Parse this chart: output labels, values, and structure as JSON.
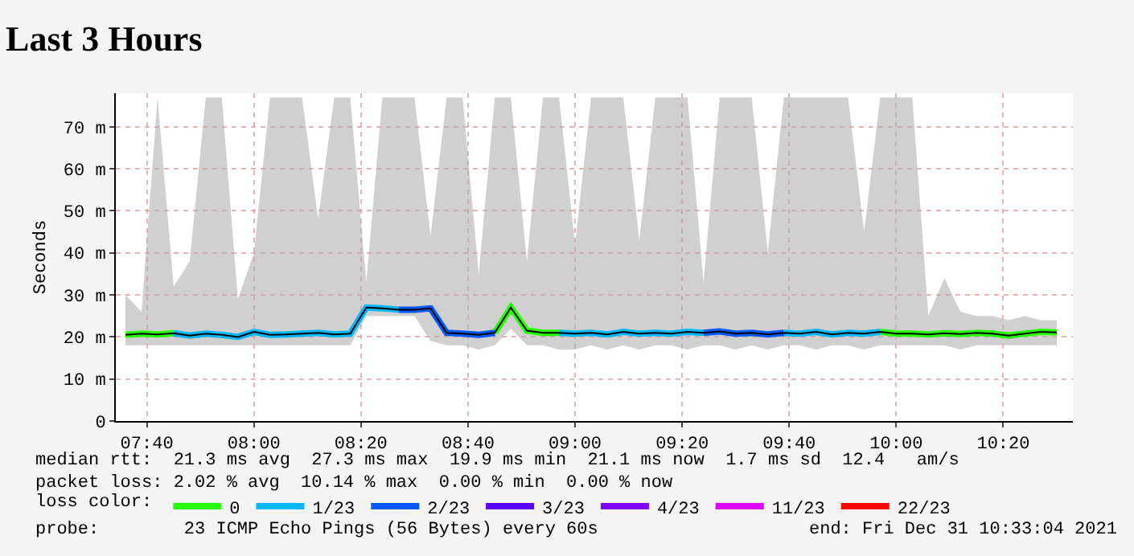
{
  "chart_data": {
    "type": "line",
    "title": "Last 3 Hours",
    "ylabel": "Seconds",
    "x": [
      7.6,
      7.65,
      7.7,
      7.75,
      7.8,
      7.85,
      7.9,
      7.95,
      8.0,
      8.05,
      8.1,
      8.15,
      8.2,
      8.25,
      8.3,
      8.35,
      8.4,
      8.45,
      8.5,
      8.55,
      8.6,
      8.65,
      8.7,
      8.75,
      8.8,
      8.85,
      8.9,
      8.95,
      9.0,
      9.05,
      9.1,
      9.15,
      9.2,
      9.25,
      9.3,
      9.35,
      9.4,
      9.45,
      9.5,
      9.55,
      9.6,
      9.65,
      9.7,
      9.75,
      9.8,
      9.85,
      9.9,
      9.95,
      10.0,
      10.05,
      10.1,
      10.15,
      10.2,
      10.25,
      10.3,
      10.35,
      10.4,
      10.45,
      10.5
    ],
    "xlim": [
      7.57,
      10.55
    ],
    "xticks": [
      {
        "value": 7.6667,
        "label": "07:40"
      },
      {
        "value": 8.0,
        "label": "08:00"
      },
      {
        "value": 8.3333,
        "label": "08:20"
      },
      {
        "value": 8.6667,
        "label": "08:40"
      },
      {
        "value": 9.0,
        "label": "09:00"
      },
      {
        "value": 9.3333,
        "label": "09:20"
      },
      {
        "value": 9.6667,
        "label": "09:40"
      },
      {
        "value": 10.0,
        "label": "10:00"
      },
      {
        "value": 10.3333,
        "label": "10:20"
      }
    ],
    "ylim": [
      0,
      78
    ],
    "yticks": [
      0,
      {
        "value": 10,
        "label": "10 m"
      },
      {
        "value": 20,
        "label": "20 m"
      },
      {
        "value": 30,
        "label": "30 m"
      },
      {
        "value": 40,
        "label": "40 m"
      },
      {
        "value": 50,
        "label": "50 m"
      },
      {
        "value": 60,
        "label": "60 m"
      },
      {
        "value": 70,
        "label": "70 m"
      }
    ],
    "grid": true,
    "legend": "bottom",
    "legend_title": "loss color:",
    "marker": "none",
    "line_style": "solid",
    "series": [
      {
        "color": "#000000",
        "values": [
          20.5,
          20.8,
          20.6,
          20.9,
          20.3,
          20.8,
          20.5,
          20.0,
          21.2,
          20.5,
          20.6,
          20.8,
          21.0,
          20.6,
          20.8,
          27.0,
          26.8,
          26.5,
          26.5,
          26.8,
          21.0,
          20.8,
          20.5,
          21.0,
          27.0,
          21.5,
          21.0,
          21.0,
          20.8,
          21.0,
          20.6,
          21.2,
          20.8,
          21.0,
          20.8,
          21.2,
          21.0,
          21.3,
          20.8,
          21.0,
          20.6,
          21.0,
          20.8,
          21.2,
          20.6,
          21.0,
          20.8,
          21.2,
          20.8,
          20.8,
          20.6,
          20.9,
          20.7,
          21.0,
          20.8,
          20.3,
          20.8,
          21.2,
          21.1
        ],
        "lower": [
          18,
          18,
          18,
          18,
          18,
          18,
          18,
          18,
          18,
          18,
          18,
          18,
          18,
          18,
          18,
          25,
          25,
          25,
          25,
          19,
          18,
          18,
          17,
          18,
          22,
          18,
          18,
          17,
          17,
          18,
          17,
          18,
          17,
          18,
          18,
          17,
          18,
          18,
          17,
          18,
          17,
          18,
          18,
          17,
          18,
          18,
          17,
          18,
          18,
          18,
          18,
          18,
          17,
          18,
          18,
          18,
          18,
          18,
          18
        ],
        "upper": [
          30,
          26,
          77,
          32,
          38,
          77,
          77,
          29,
          40,
          77,
          77,
          77,
          48,
          77,
          77,
          33,
          77,
          77,
          77,
          44,
          77,
          77,
          35,
          77,
          77,
          38,
          77,
          77,
          42,
          77,
          77,
          77,
          43,
          77,
          77,
          77,
          33,
          77,
          77,
          77,
          40,
          77,
          77,
          77,
          77,
          77,
          45,
          77,
          77,
          77,
          25,
          34,
          26,
          25,
          25,
          24,
          25,
          24,
          24
        ]
      },
      {
        "name": "0",
        "color": "#26ff00",
        "values": [
          20.5,
          20.8,
          20.6,
          20.9,
          null,
          null,
          null,
          null,
          null,
          null,
          null,
          null,
          null,
          null,
          null,
          null,
          null,
          null,
          null,
          null,
          null,
          null,
          null,
          21.0,
          27.0,
          21.5,
          21.0,
          21.0,
          null,
          null,
          null,
          null,
          null,
          null,
          null,
          null,
          null,
          null,
          null,
          null,
          null,
          null,
          null,
          null,
          null,
          null,
          null,
          21.2,
          20.8,
          20.8,
          20.6,
          20.9,
          20.7,
          21.0,
          20.8,
          20.3,
          20.8,
          21.2,
          21.1
        ]
      },
      {
        "name": "1/23",
        "color": "#00b8ff",
        "values": [
          null,
          null,
          null,
          20.9,
          20.3,
          20.8,
          20.5,
          20.0,
          21.2,
          20.5,
          20.6,
          20.8,
          21.0,
          20.6,
          20.8,
          27.0,
          26.8,
          26.5,
          null,
          null,
          null,
          null,
          null,
          null,
          null,
          null,
          null,
          21.0,
          20.8,
          21.0,
          20.6,
          21.2,
          20.8,
          21.0,
          20.8,
          21.2,
          21.0,
          null,
          null,
          null,
          null,
          21.0,
          20.8,
          21.2,
          20.6,
          21.0,
          20.8,
          21.2,
          null,
          null,
          null,
          null,
          null,
          null,
          null,
          null,
          null,
          null,
          null
        ]
      },
      {
        "name": "2/23",
        "color": "#0059ff",
        "values": [
          null,
          null,
          null,
          null,
          null,
          null,
          null,
          null,
          null,
          null,
          null,
          null,
          null,
          null,
          null,
          null,
          null,
          26.5,
          26.5,
          26.8,
          21.0,
          20.8,
          20.5,
          21.0,
          null,
          null,
          null,
          null,
          null,
          null,
          null,
          null,
          null,
          null,
          null,
          null,
          21.0,
          21.3,
          20.8,
          21.0,
          20.6,
          21.0,
          null,
          null,
          null,
          null,
          null,
          null,
          null,
          null,
          null,
          null,
          null,
          null,
          null,
          null,
          null,
          null,
          null
        ]
      },
      {
        "name": "3/23",
        "color": "#5e00ff",
        "values": [
          null,
          null,
          null,
          null,
          null,
          null,
          null,
          null,
          null,
          null,
          null,
          null,
          null,
          null,
          null,
          null,
          null,
          null,
          null,
          null,
          null,
          null,
          null,
          null,
          null,
          null,
          null,
          null,
          null,
          null,
          null,
          null,
          null,
          null,
          null,
          null,
          null,
          null,
          null,
          null,
          null,
          null,
          null,
          null,
          null,
          null,
          null,
          null,
          null,
          null,
          null,
          null,
          null,
          null,
          null,
          null,
          null,
          null,
          null
        ]
      },
      {
        "name": "4/23",
        "color": "#7e00ff",
        "values": [
          null,
          null,
          null,
          null,
          null,
          null,
          null,
          null,
          null,
          null,
          null,
          null,
          null,
          null,
          null,
          null,
          null,
          null,
          null,
          null,
          null,
          null,
          null,
          null,
          null,
          null,
          null,
          null,
          null,
          null,
          null,
          null,
          null,
          null,
          null,
          null,
          null,
          null,
          null,
          null,
          null,
          null,
          null,
          null,
          null,
          null,
          null,
          null,
          null,
          null,
          null,
          null,
          null,
          null,
          null,
          null,
          null,
          null,
          null
        ]
      },
      {
        "name": "11/23",
        "color": "#dd00ff",
        "values": [
          null,
          null,
          null,
          null,
          null,
          null,
          null,
          null,
          null,
          null,
          null,
          null,
          null,
          null,
          null,
          null,
          null,
          null,
          null,
          null,
          null,
          null,
          null,
          null,
          null,
          null,
          null,
          null,
          null,
          null,
          null,
          null,
          null,
          null,
          null,
          null,
          null,
          null,
          null,
          null,
          null,
          null,
          null,
          null,
          null,
          null,
          null,
          null,
          null,
          null,
          null,
          null,
          null,
          null,
          null,
          null,
          null,
          null,
          null
        ]
      },
      {
        "name": "22/23",
        "color": "#ff0000",
        "values": [
          null,
          null,
          null,
          null,
          null,
          null,
          null,
          null,
          null,
          null,
          null,
          null,
          null,
          null,
          null,
          null,
          null,
          null,
          null,
          null,
          null,
          null,
          null,
          null,
          null,
          null,
          null,
          null,
          null,
          null,
          null,
          null,
          null,
          null,
          null,
          null,
          null,
          null,
          null,
          null,
          null,
          null,
          null,
          null,
          null,
          null,
          null,
          null,
          null,
          null,
          null,
          null,
          null,
          null,
          null,
          null,
          null,
          null,
          null
        ]
      }
    ],
    "annotations": [
      "median rtt:  21.3 ms avg  27.3 ms max  19.9 ms min  21.1 ms now  1.7 ms sd  12.4   am/s",
      "packet loss: 2.02 % avg  10.14 % max  0.00 % min  0.00 % now",
      "probe:        23 ICMP Echo Pings (56 Bytes) every 60s",
      "end: Fri Dec 31 10:33:04 2021"
    ]
  }
}
